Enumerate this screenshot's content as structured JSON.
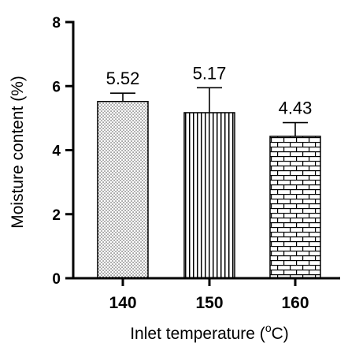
{
  "chart_data": {
    "type": "bar",
    "categories": [
      "140",
      "150",
      "160"
    ],
    "values": [
      5.52,
      5.17,
      4.43
    ],
    "error_upper": [
      5.78,
      5.95,
      4.86
    ],
    "data_labels": [
      "5.52",
      "5.17",
      "4.43"
    ],
    "bar_patterns": [
      "dots",
      "vertical-lines",
      "bricks"
    ],
    "title": "",
    "xlabel_prefix": "Inlet temperature (",
    "xlabel_super": "o",
    "xlabel_suffix": "C)",
    "ylabel": "Moisture content (%)",
    "ylim": [
      0,
      8
    ],
    "yticks": [
      "0",
      "2",
      "4",
      "6",
      "8"
    ],
    "grid": false,
    "colors": {
      "ink": "#000000",
      "background": "#ffffff"
    }
  }
}
